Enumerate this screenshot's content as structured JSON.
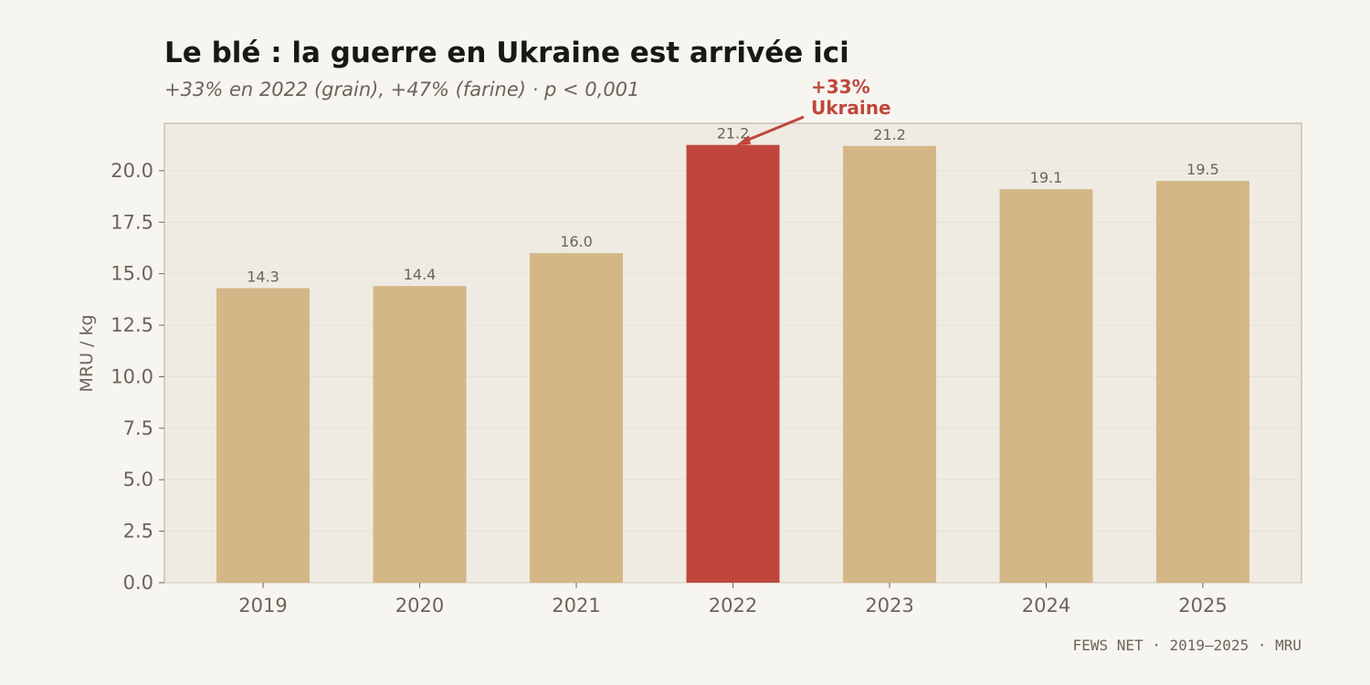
{
  "chart_data": {
    "type": "bar",
    "title": "Le blé : la guerre en Ukraine est arrivée ici",
    "subtitle": "+33% en 2022 (grain), +47% (farine) · p < 0,001",
    "categories": [
      "2019",
      "2020",
      "2021",
      "2022",
      "2023",
      "2024",
      "2025"
    ],
    "values": [
      14.3,
      14.4,
      16.0,
      21.25,
      21.2,
      19.1,
      19.5
    ],
    "data_labels": [
      "14.3",
      "14.4",
      "16.0",
      "21.2",
      "21.2",
      "19.1",
      "19.5"
    ],
    "highlight_index": 3,
    "xlabel": "",
    "ylabel": "MRU / kg",
    "ylim": [
      0,
      22.3
    ],
    "yticks": [
      "0.0",
      "2.5",
      "5.0",
      "7.5",
      "10.0",
      "12.5",
      "15.0",
      "17.5",
      "20.0"
    ],
    "grid": true,
    "colors": {
      "bar": "#d4b786",
      "highlight": "#c0463b",
      "plot_bg": "#efebe3",
      "page_bg": "#f7f5f0"
    },
    "annotation": {
      "line1": "+33%",
      "line2": "Ukraine",
      "target": "2022"
    },
    "source": "FEWS NET · 2019–2025 · MRU"
  }
}
